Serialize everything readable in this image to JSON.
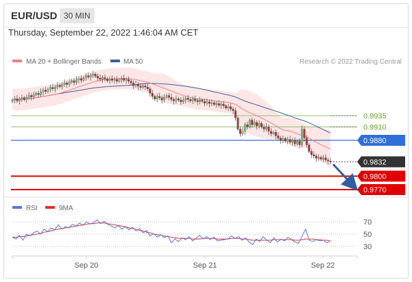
{
  "header": {
    "pair": "EUR/USD",
    "interval": "30 MIN",
    "datetime": "Thursday, September 22, 2022 1:46:04 AM CET",
    "credit": "Research © 2022 Trading Central"
  },
  "legend": {
    "ma20_label": "MA 20 + Bollinger Bands",
    "ma50_label": "MA 50",
    "rsi_label": "RSI",
    "rsi_ma_label": "9MA"
  },
  "colors": {
    "ma20": "#f08080",
    "ma50": "#3a5f9a",
    "band_fill": "#fde2e2",
    "candle_up": "#7cc77c",
    "candle_down": "#b03030",
    "resistance": "#90c070",
    "pivot": "#2f6fd6",
    "support": "#e00000",
    "last_price": "#333333",
    "arrow": "#2f5fa0",
    "rsi": "#5577dd",
    "rsi_ma": "#e03030"
  },
  "chart_data": [
    {
      "type": "candlestick",
      "x_labels": [
        "Sep 20",
        "Sep 21",
        "Sep 22"
      ],
      "y_range": [
        0.9755,
        1.0045
      ],
      "price_levels": [
        {
          "label": "0.9935",
          "value": 0.9935,
          "kind": "resistance"
        },
        {
          "label": "0.9910",
          "value": 0.991,
          "kind": "resistance"
        },
        {
          "label": "0.9880",
          "value": 0.988,
          "kind": "pivot"
        },
        {
          "label": "0.9832",
          "value": 0.9832,
          "kind": "last"
        },
        {
          "label": "0.9800",
          "value": 0.98,
          "kind": "support"
        },
        {
          "label": "0.9770",
          "value": 0.977,
          "kind": "support"
        }
      ],
      "close": [
        0.997,
        0.9973,
        0.9968,
        0.9972,
        0.9975,
        0.9971,
        0.9976,
        0.998,
        0.9977,
        0.9982,
        0.9985,
        0.9982,
        0.9988,
        0.9992,
        0.9989,
        0.9994,
        0.9998,
        0.9995,
        0.9999,
        1.0003,
        1.0,
        1.0004,
        1.0008,
        1.0005,
        1.001,
        1.0013,
        1.0009,
        1.0015,
        1.0018,
        1.0014,
        1.002,
        1.0024,
        1.0021,
        1.0025,
        1.0028,
        1.0023,
        1.0019,
        1.0016,
        1.002,
        1.0017,
        1.0013,
        1.0017,
        1.0014,
        1.0016,
        1.0012,
        1.0015,
        1.0018,
        1.0014,
        1.0016,
        1.0012,
        1.0008,
        1.0002,
        1.0005,
        1.0001,
        0.9998,
        1.0002,
        0.9999,
        0.9995,
        0.9985,
        0.9978,
        0.9972,
        0.9978,
        0.9975,
        0.997,
        0.9976,
        0.998,
        0.9976,
        0.9971,
        0.9968,
        0.9973,
        0.997,
        0.9966,
        0.997,
        0.9974,
        0.9971,
        0.9968,
        0.9972,
        0.9969,
        0.9966,
        0.997,
        0.9967,
        0.9963,
        0.9966,
        0.9962,
        0.9964,
        0.996,
        0.9962,
        0.9958,
        0.9961,
        0.9957,
        0.9952,
        0.9955,
        0.995,
        0.9946,
        0.993,
        0.9905,
        0.9895,
        0.99,
        0.9915,
        0.991,
        0.9925,
        0.9915,
        0.992,
        0.9912,
        0.9918,
        0.991,
        0.9905,
        0.991,
        0.99,
        0.9895,
        0.9898,
        0.989,
        0.9885,
        0.988,
        0.9884,
        0.9878,
        0.9882,
        0.9876,
        0.988,
        0.9872,
        0.9878,
        0.987,
        0.9905,
        0.9885,
        0.987,
        0.9855,
        0.9848,
        0.9845,
        0.984,
        0.9842,
        0.9838,
        0.9841,
        0.9836,
        0.9834,
        0.9832
      ]
    },
    {
      "type": "line",
      "series": [
        {
          "name": "RSI"
        },
        {
          "name": "9MA"
        }
      ],
      "y_ticks": [
        70,
        50,
        30
      ],
      "rsi": [
        45,
        42,
        48,
        40,
        50,
        47,
        52,
        55,
        50,
        58,
        54,
        60,
        57,
        65,
        58,
        62,
        60,
        66,
        63,
        68,
        64,
        70,
        66,
        69,
        73,
        67,
        71,
        66,
        63,
        60,
        64,
        58,
        62,
        57,
        61,
        55,
        59,
        52,
        56,
        47,
        51,
        45,
        49,
        44,
        47,
        36,
        42,
        38,
        44,
        41,
        46,
        39,
        43,
        48,
        42,
        46,
        41,
        45,
        39,
        40,
        41,
        42,
        47,
        43,
        46,
        40,
        44,
        37,
        33,
        42,
        38,
        46,
        40,
        36,
        44,
        37,
        42,
        39,
        45,
        41,
        37,
        35,
        47,
        58,
        40,
        38,
        41,
        39,
        40,
        36,
        38
      ],
      "rsi_ma": [
        45,
        45,
        46,
        46,
        47,
        48,
        49,
        50,
        51,
        53,
        54,
        55,
        57,
        58,
        59,
        60,
        61,
        62,
        63,
        64,
        65,
        66,
        67,
        67,
        68,
        68,
        68,
        67,
        66,
        65,
        64,
        63,
        62,
        60,
        59,
        58,
        56,
        55,
        53,
        52,
        50,
        49,
        48,
        47,
        46,
        45,
        44,
        43,
        43,
        43,
        43,
        42,
        42,
        42,
        43,
        43,
        43,
        43,
        42,
        42,
        42,
        42,
        43,
        43,
        43,
        42,
        42,
        41,
        40,
        40,
        40,
        40,
        40,
        40,
        41,
        41,
        41,
        41,
        41,
        41,
        40,
        40,
        41,
        42,
        42,
        42,
        41,
        41,
        40,
        40,
        39
      ]
    }
  ]
}
